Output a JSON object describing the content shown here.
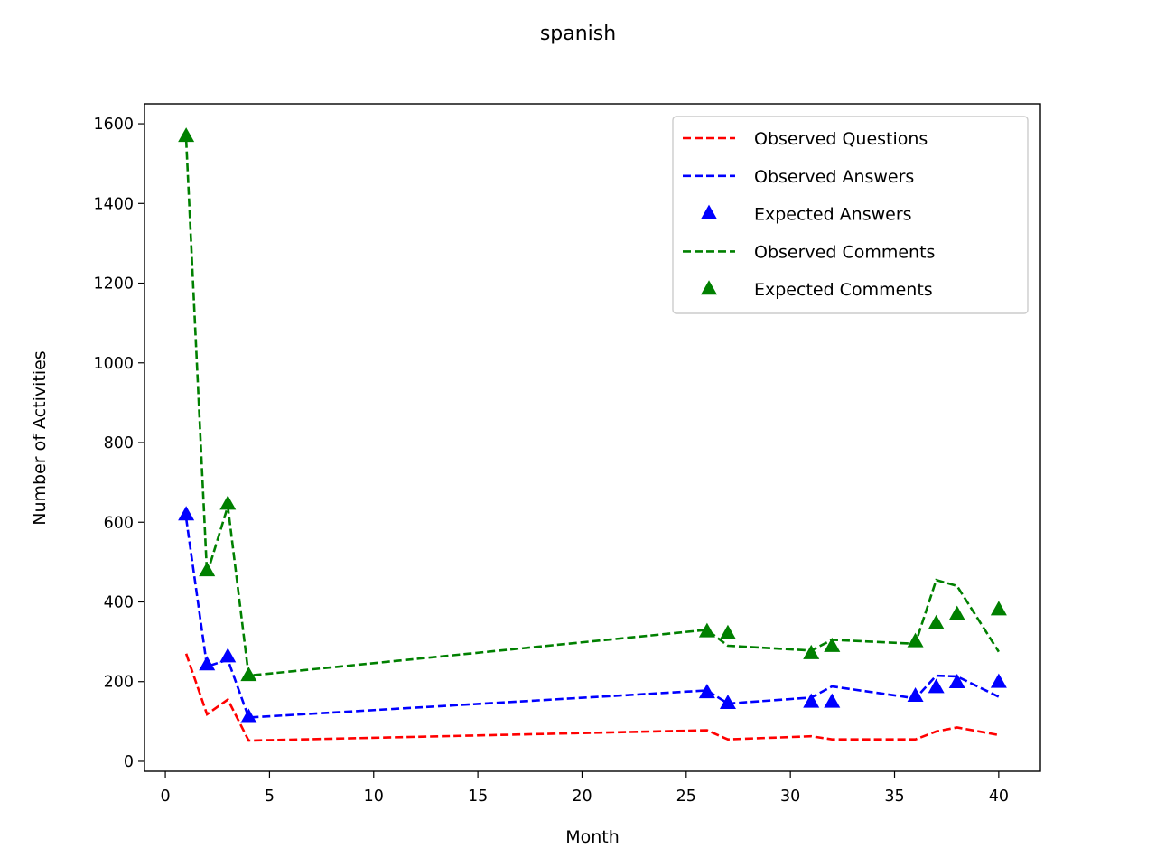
{
  "chart_data": {
    "type": "line",
    "title": "spanish",
    "xlabel": "Month",
    "ylabel": "Number of Activities",
    "xlim": [
      -1,
      42
    ],
    "ylim": [
      -25,
      1650
    ],
    "x_ticks": [
      0,
      5,
      10,
      15,
      20,
      25,
      30,
      35,
      40
    ],
    "y_ticks": [
      0,
      200,
      400,
      600,
      800,
      1000,
      1200,
      1400,
      1600
    ],
    "x_tick_labels": [
      "0",
      "5",
      "10",
      "15",
      "20",
      "25",
      "30",
      "35",
      "40"
    ],
    "y_tick_labels": [
      "0",
      "200",
      "400",
      "600",
      "800",
      "1000",
      "1200",
      "1400",
      "1600"
    ],
    "grid": false,
    "legend_position": "top-right",
    "x": [
      1,
      2,
      3,
      4,
      26,
      27,
      31,
      32,
      36,
      37,
      38,
      40
    ],
    "series": [
      {
        "name": "Observed Questions",
        "style": "dashed-line",
        "color": "#ff0000",
        "values": [
          270,
          118,
          155,
          52,
          78,
          55,
          63,
          55,
          55,
          75,
          85,
          66
        ]
      },
      {
        "name": "Observed Answers",
        "style": "dashed-line",
        "color": "#0000ff",
        "values": [
          610,
          238,
          255,
          110,
          178,
          145,
          160,
          188,
          158,
          215,
          213,
          162
        ]
      },
      {
        "name": "Expected Answers",
        "style": "triangle-markers",
        "color": "#0000ff",
        "values": [
          618,
          242,
          262,
          110,
          172,
          145,
          148,
          148,
          163,
          185,
          197,
          198
        ]
      },
      {
        "name": "Observed Comments",
        "style": "dashed-line",
        "color": "#008000",
        "values": [
          1560,
          470,
          640,
          215,
          330,
          290,
          278,
          305,
          295,
          455,
          440,
          275
        ]
      },
      {
        "name": "Expected Comments",
        "style": "triangle-markers",
        "color": "#008000",
        "values": [
          1568,
          478,
          645,
          215,
          325,
          320,
          270,
          288,
          300,
          345,
          368,
          380
        ]
      }
    ]
  }
}
